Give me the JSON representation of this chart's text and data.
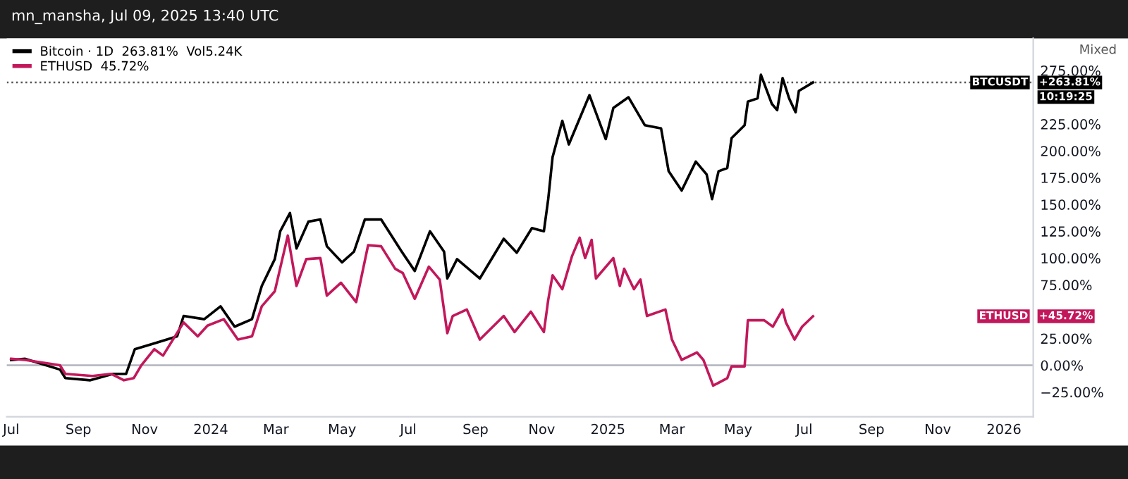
{
  "chart_data": {
    "type": "line",
    "title": "mn_mansha, Jul 09, 2025 13:40 UTC",
    "series": [
      {
        "name": "Bitcoin · 1D  263.81%  Vol5.24K",
        "color": "#000000",
        "x": [
          "2023-07-01",
          "2023-07-14",
          "2023-08-15",
          "2023-08-20",
          "2023-09-12",
          "2023-10-03",
          "2023-10-15",
          "2023-10-23",
          "2023-11-12",
          "2023-12-01",
          "2023-12-07",
          "2023-12-26",
          "2024-01-10",
          "2024-01-23",
          "2024-02-08",
          "2024-02-17",
          "2024-02-29",
          "2024-03-05",
          "2024-03-14",
          "2024-03-20",
          "2024-03-31",
          "2024-04-11",
          "2024-04-17",
          "2024-05-01",
          "2024-05-12",
          "2024-05-22",
          "2024-06-06",
          "2024-06-25",
          "2024-07-07",
          "2024-07-21",
          "2024-08-03",
          "2024-08-06",
          "2024-08-15",
          "2024-09-05",
          "2024-09-27",
          "2024-10-09",
          "2024-10-23",
          "2024-11-03",
          "2024-11-07",
          "2024-11-11",
          "2024-11-20",
          "2024-11-26",
          "2024-12-15",
          "2024-12-30",
          "2025-01-06",
          "2025-01-20",
          "2025-02-04",
          "2025-02-19",
          "2025-02-26",
          "2025-03-10",
          "2025-03-23",
          "2025-04-02",
          "2025-04-07",
          "2025-04-13",
          "2025-04-21",
          "2025-04-25",
          "2025-05-07",
          "2025-05-10",
          "2025-05-19",
          "2025-05-22",
          "2025-06-01",
          "2025-06-06",
          "2025-06-11",
          "2025-06-17",
          "2025-06-23",
          "2025-06-26",
          "2025-07-09"
        ],
        "values": [
          5,
          6,
          -4,
          -12,
          -14,
          -8,
          -8,
          15,
          21,
          27,
          46,
          43,
          55,
          36,
          43,
          74,
          99,
          125,
          142,
          109,
          134,
          136,
          111,
          96,
          106,
          136,
          136,
          106,
          88,
          125,
          106,
          81,
          99,
          81,
          118,
          105,
          128,
          125,
          155,
          194,
          228,
          206,
          252,
          211,
          240,
          250,
          224,
          221,
          181,
          163,
          190,
          178,
          155,
          181,
          184,
          212,
          224,
          246,
          249,
          271,
          244,
          238,
          268,
          249,
          236,
          256,
          263.81
        ]
      },
      {
        "name": "ETHUSD  45.72%",
        "color": "#c2185b",
        "x": [
          "2023-07-01",
          "2023-07-14",
          "2023-08-15",
          "2023-08-20",
          "2023-09-14",
          "2023-10-01",
          "2023-10-13",
          "2023-10-22",
          "2023-10-29",
          "2023-11-10",
          "2023-11-18",
          "2023-12-07",
          "2023-12-20",
          "2023-12-29",
          "2024-01-13",
          "2024-01-26",
          "2024-02-08",
          "2024-02-17",
          "2024-02-29",
          "2024-03-12",
          "2024-03-20",
          "2024-03-29",
          "2024-04-11",
          "2024-04-17",
          "2024-04-30",
          "2024-05-14",
          "2024-05-25",
          "2024-06-06",
          "2024-06-19",
          "2024-06-26",
          "2024-07-07",
          "2024-07-20",
          "2024-07-30",
          "2024-08-06",
          "2024-08-11",
          "2024-08-24",
          "2024-09-05",
          "2024-09-27",
          "2024-10-07",
          "2024-10-22",
          "2024-11-03",
          "2024-11-07",
          "2024-11-11",
          "2024-11-20",
          "2024-11-29",
          "2024-12-06",
          "2024-12-11",
          "2024-12-17",
          "2024-12-21",
          "2025-01-06",
          "2025-01-12",
          "2025-01-16",
          "2025-01-25",
          "2025-01-31",
          "2025-02-06",
          "2025-02-23",
          "2025-03-01",
          "2025-03-10",
          "2025-03-24",
          "2025-03-30",
          "2025-04-08",
          "2025-04-21",
          "2025-04-25",
          "2025-05-07",
          "2025-05-10",
          "2025-05-25",
          "2025-06-02",
          "2025-06-11",
          "2025-06-14",
          "2025-06-22",
          "2025-06-29",
          "2025-07-09"
        ],
        "values": [
          6,
          5,
          0,
          -8,
          -10,
          -8,
          -14,
          -12,
          0,
          15,
          9,
          40,
          27,
          37,
          43,
          24,
          27,
          55,
          69,
          121,
          74,
          99,
          100,
          65,
          77,
          59,
          112,
          111,
          90,
          86,
          62,
          92,
          80,
          30,
          46,
          52,
          24,
          46,
          31,
          50,
          31,
          61,
          84,
          71,
          102,
          119,
          100,
          117,
          81,
          100,
          74,
          90,
          71,
          80,
          46,
          52,
          24,
          5,
          12,
          5,
          -19,
          -12,
          -1,
          -1,
          42,
          42,
          36,
          52,
          40,
          24,
          36,
          45.72
        ]
      }
    ],
    "xlim": [
      "2023-06-27",
      "2026-01-28"
    ],
    "xticks": [
      {
        "value": "2023-07-01",
        "label": "Jul"
      },
      {
        "value": "2023-09-01",
        "label": "Sep"
      },
      {
        "value": "2023-11-01",
        "label": "Nov"
      },
      {
        "value": "2024-01-01",
        "label": "2024"
      },
      {
        "value": "2024-03-01",
        "label": "Mar"
      },
      {
        "value": "2024-05-01",
        "label": "May"
      },
      {
        "value": "2024-07-01",
        "label": "Jul"
      },
      {
        "value": "2024-09-01",
        "label": "Sep"
      },
      {
        "value": "2024-11-01",
        "label": "Nov"
      },
      {
        "value": "2025-01-01",
        "label": "2025"
      },
      {
        "value": "2025-03-01",
        "label": "Mar"
      },
      {
        "value": "2025-05-01",
        "label": "May"
      },
      {
        "value": "2025-07-01",
        "label": "Jul"
      },
      {
        "value": "2025-09-01",
        "label": "Sep"
      },
      {
        "value": "2025-11-01",
        "label": "Nov"
      },
      {
        "value": "2026-01-01",
        "label": "2026"
      }
    ],
    "ylim": [
      -48,
      305
    ],
    "yticks": [
      {
        "value": -25,
        "label": "−25.00%"
      },
      {
        "value": 0,
        "label": "0.00%"
      },
      {
        "value": 25,
        "label": "25.00%"
      },
      {
        "value": 75,
        "label": "75.00%"
      },
      {
        "value": 100,
        "label": "100.00%"
      },
      {
        "value": 125,
        "label": "125.00%"
      },
      {
        "value": 150,
        "label": "150.00%"
      },
      {
        "value": 175,
        "label": "175.00%"
      },
      {
        "value": 200,
        "label": "200.00%"
      },
      {
        "value": 225,
        "label": "225.00%"
      },
      {
        "value": 275,
        "label": "275.00%"
      }
    ],
    "ref_lines": [
      {
        "axis": "y",
        "value": 0,
        "color": "#b2b5be",
        "line_style": "solid"
      },
      {
        "axis": "y",
        "value": 263.81,
        "color": "#555555",
        "line_style": "dotted"
      }
    ],
    "annotations": [
      "Mixed",
      "BTCUSDT",
      "+263.81%",
      "10:19:25",
      "ETHUSD",
      "+45.72%"
    ],
    "legend": "top left",
    "grid": false,
    "marker": "none",
    "line_style": "solid"
  }
}
